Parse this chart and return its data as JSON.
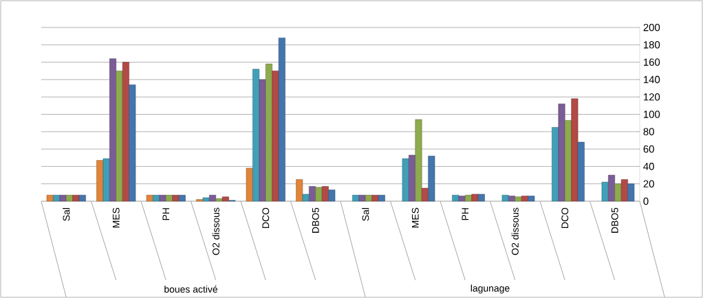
{
  "chart_data": {
    "type": "bar",
    "categories": [
      "Sal",
      "MES",
      "PH",
      "O2 dissous",
      "DCO",
      "DBO5",
      "Sal",
      "MES",
      "PH",
      "O2 dissous",
      "DCO",
      "DBO5"
    ],
    "annotations": [
      "boues activé",
      "lagunage"
    ],
    "ylim": [
      0,
      200
    ],
    "yticks": [
      0,
      20,
      40,
      60,
      80,
      100,
      120,
      140,
      160,
      180,
      200
    ],
    "grid": "y",
    "series": [
      {
        "color": "#e0843a",
        "values": [
          7,
          47,
          7,
          2,
          38,
          25,
          null,
          null,
          null,
          null,
          null,
          null
        ]
      },
      {
        "color": "#3fa0b8",
        "values": [
          7,
          49,
          7,
          4,
          152,
          8,
          7,
          49,
          7,
          7,
          85,
          22
        ]
      },
      {
        "color": "#7a5c96",
        "values": [
          7,
          164,
          7,
          7,
          140,
          17,
          7,
          53,
          6,
          6,
          112,
          30
        ]
      },
      {
        "color": "#8eab4d",
        "values": [
          7,
          150,
          7,
          3,
          158,
          16,
          7,
          94,
          7,
          5,
          93,
          20
        ]
      },
      {
        "color": "#b24a46",
        "values": [
          7,
          160,
          7,
          5,
          150,
          17,
          7,
          15,
          8,
          6,
          118,
          25
        ]
      },
      {
        "color": "#4475ad",
        "values": [
          7,
          134,
          7,
          1,
          188,
          13,
          7,
          52,
          8,
          6,
          68,
          20
        ]
      }
    ]
  }
}
